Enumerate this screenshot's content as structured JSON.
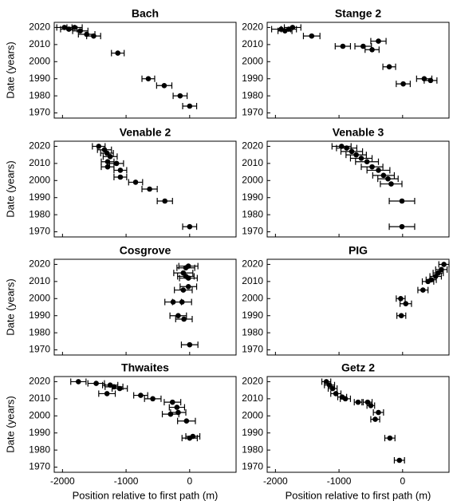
{
  "chart_data": [
    {
      "type": "scatter",
      "title": "Bach",
      "ylabel": "Date (years)",
      "x": [
        -1970,
        -1900,
        -1810,
        -1720,
        -1620,
        -1510,
        -1130,
        -650,
        -400,
        -150,
        0
      ],
      "y": [
        2020,
        2019,
        2020,
        2018,
        2016,
        2015,
        2005,
        1990,
        1986,
        1980,
        1974
      ],
      "xerr": [
        120,
        130,
        120,
        120,
        130,
        110,
        100,
        100,
        120,
        110,
        110
      ],
      "xlim": [
        -2130,
        730
      ],
      "ylim": [
        1967,
        2023
      ],
      "xticks": [
        -2000,
        -1000,
        0
      ],
      "yticks": [
        1970,
        1980,
        1990,
        2000,
        2010,
        2020
      ]
    },
    {
      "type": "scatter",
      "title": "Stange 2",
      "x": [
        -1910,
        -1790,
        -1730,
        -1850,
        -1430,
        -940,
        -620,
        -480,
        -380,
        -210,
        340,
        440,
        10
      ],
      "y": [
        2019,
        2019,
        2020,
        2018,
        2015,
        2009,
        2009,
        2007,
        2012,
        1997,
        1990,
        1989,
        1987
      ],
      "xerr": [
        150,
        120,
        130,
        110,
        130,
        120,
        130,
        110,
        120,
        100,
        120,
        100,
        110
      ],
      "xlim": [
        -2130,
        730
      ],
      "ylim": [
        1967,
        2023
      ],
      "xticks": [
        -2000,
        -1000,
        0
      ],
      "yticks": [
        1970,
        1980,
        1990,
        2000,
        2010,
        2020
      ]
    },
    {
      "type": "scatter",
      "title": "Venable 2",
      "ylabel": "Date (years)",
      "x": [
        -1430,
        -1340,
        -1300,
        -1250,
        -1290,
        -1290,
        -1150,
        -1090,
        -1090,
        -850,
        -630,
        -390,
        0
      ],
      "y": [
        2020,
        2018,
        2016,
        2014,
        2011,
        2008,
        2010,
        2006,
        2002,
        1999,
        1995,
        1988,
        1973
      ],
      "xerr": [
        100,
        110,
        100,
        110,
        100,
        100,
        110,
        100,
        100,
        110,
        120,
        120,
        110
      ],
      "xlim": [
        -2130,
        730
      ],
      "ylim": [
        1967,
        2023
      ],
      "xticks": [
        -2000,
        -1000,
        0
      ],
      "yticks": [
        1970,
        1980,
        1990,
        2000,
        2010,
        2020
      ]
    },
    {
      "type": "scatter",
      "title": "Venable 3",
      "x": [
        -960,
        -880,
        -800,
        -730,
        -650,
        -560,
        -480,
        -380,
        -300,
        -230,
        -180,
        -10,
        -10
      ],
      "y": [
        2020,
        2019,
        2017,
        2015,
        2013,
        2011,
        2008,
        2006,
        2003,
        2001,
        1998,
        1988,
        1973
      ],
      "xerr": [
        150,
        160,
        170,
        160,
        170,
        180,
        170,
        180,
        170,
        160,
        170,
        200,
        200
      ],
      "xlim": [
        -2130,
        730
      ],
      "ylim": [
        1967,
        2023
      ],
      "xticks": [
        -2000,
        -1000,
        0
      ],
      "yticks": [
        1970,
        1980,
        1990,
        2000,
        2010,
        2020
      ]
    },
    {
      "type": "scatter",
      "title": "Cosgrove",
      "ylabel": "Date (years)",
      "x": [
        -20,
        -60,
        -100,
        -60,
        -20,
        -20,
        -100,
        -260,
        -120,
        -180,
        -90,
        0
      ],
      "y": [
        2019,
        2018,
        2015,
        2013,
        2012,
        2007,
        2005,
        1998,
        1998,
        1990,
        1988,
        1973
      ],
      "xerr": [
        150,
        140,
        150,
        130,
        140,
        130,
        140,
        130,
        150,
        130,
        130,
        130
      ],
      "xlim": [
        -2130,
        730
      ],
      "ylim": [
        1967,
        2023
      ],
      "xticks": [
        -2000,
        -1000,
        0
      ],
      "yticks": [
        1970,
        1980,
        1990,
        2000,
        2010,
        2020
      ]
    },
    {
      "type": "scatter",
      "title": "PIG",
      "x": [
        650,
        610,
        560,
        520,
        450,
        400,
        320,
        -30,
        50,
        -20
      ],
      "y": [
        2020,
        2017,
        2015,
        2013,
        2011,
        2010,
        2005,
        2000,
        1997,
        1990
      ],
      "xerr": [
        80,
        90,
        80,
        90,
        80,
        90,
        80,
        70,
        90,
        70
      ],
      "xlim": [
        -2130,
        730
      ],
      "ylim": [
        1967,
        2023
      ],
      "xticks": [
        -2000,
        -1000,
        0
      ],
      "yticks": [
        1970,
        1980,
        1990,
        2000,
        2010,
        2020
      ]
    },
    {
      "type": "scatter",
      "title": "Thwaites",
      "ylabel": "Date (years)",
      "xlabel": "Position relative to first path (m)",
      "x": [
        -1750,
        -1470,
        -1250,
        -1190,
        -1100,
        -1300,
        -770,
        -580,
        -270,
        -200,
        -300,
        -180,
        -50,
        0,
        50
      ],
      "y": [
        2020,
        2019,
        2018,
        2017,
        2016,
        2013,
        2012,
        2010,
        2008,
        2005,
        2001,
        2002,
        1997,
        1987,
        1988
      ],
      "xerr": [
        120,
        130,
        120,
        140,
        120,
        130,
        110,
        130,
        130,
        120,
        130,
        120,
        140,
        120,
        110
      ],
      "xlim": [
        -2130,
        730
      ],
      "ylim": [
        1967,
        2023
      ],
      "xticks": [
        -2000,
        -1000,
        0
      ],
      "yticks": [
        1970,
        1980,
        1990,
        2000,
        2010,
        2020
      ]
    },
    {
      "type": "scatter",
      "title": "Getz 2",
      "xlabel": "Position relative to first path (m)",
      "x": [
        -1200,
        -1150,
        -1100,
        -1050,
        -950,
        -900,
        -700,
        -550,
        -500,
        -380,
        -430,
        -200,
        -50
      ],
      "y": [
        2020,
        2018,
        2016,
        2013,
        2011,
        2010,
        2008,
        2008,
        2006,
        2002,
        1998,
        1987,
        1974
      ],
      "xerr": [
        70,
        80,
        70,
        80,
        70,
        80,
        60,
        70,
        60,
        80,
        70,
        80,
        80
      ],
      "xlim": [
        -2130,
        730
      ],
      "ylim": [
        1967,
        2023
      ],
      "xticks": [
        -2000,
        -1000,
        0
      ],
      "yticks": [
        1970,
        1980,
        1990,
        2000,
        2010,
        2020
      ]
    }
  ]
}
